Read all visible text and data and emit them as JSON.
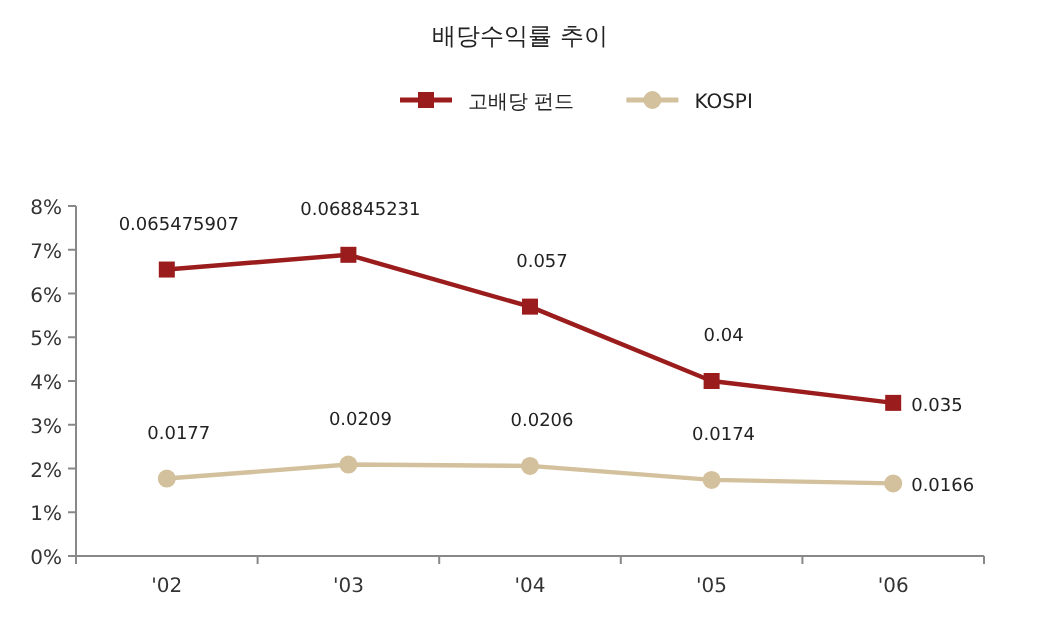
{
  "chart_data": {
    "type": "line",
    "title": "배당수익률 추이",
    "categories": [
      "'02",
      "'03",
      "'04",
      "'05",
      "'06"
    ],
    "series": [
      {
        "name": "고배당 펀드",
        "color": "#9b1c1c",
        "marker": "square",
        "values": [
          0.065475907,
          0.068845231,
          0.057,
          0.04,
          0.035
        ]
      },
      {
        "name": "KOSPI",
        "color": "#d3c09c",
        "marker": "circle",
        "values": [
          0.0177,
          0.0209,
          0.0206,
          0.0174,
          0.0166
        ]
      }
    ],
    "ylim": [
      0,
      0.08
    ],
    "yticks": [
      {
        "value": 0,
        "label": "0%"
      },
      {
        "value": 0.01,
        "label": "1%"
      },
      {
        "value": 0.02,
        "label": "2%"
      },
      {
        "value": 0.03,
        "label": "3%"
      },
      {
        "value": 0.04,
        "label": "4%"
      },
      {
        "value": 0.05,
        "label": "5%"
      },
      {
        "value": 0.06,
        "label": "6%"
      },
      {
        "value": 0.07,
        "label": "7%"
      },
      {
        "value": 0.08,
        "label": "8%"
      }
    ],
    "data_labels": true,
    "legend": "top",
    "grid": false,
    "line_style": "solid"
  }
}
